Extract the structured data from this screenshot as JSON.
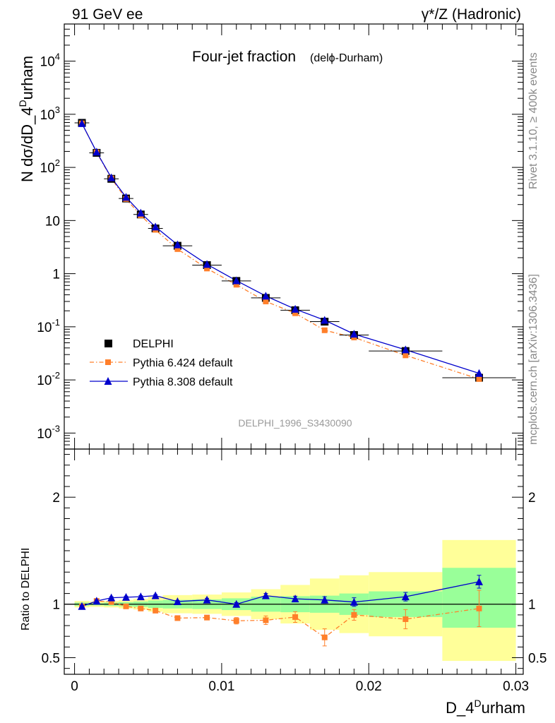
{
  "header": {
    "left": "91 GeV ee",
    "right": "γ*/Z (Hadronic)"
  },
  "side": {
    "rivet": "Rivet 3.1.10, ≥ 400k events",
    "mcplots": "mcplots.cern.ch [arXiv:1306.3436]"
  },
  "colors": {
    "data": "#000000",
    "pythia6": "#ff7f2a",
    "pythia8": "#0000cc",
    "band_inner": "#99ff99",
    "band_outer": "#ffff99",
    "watermark": "#9a9a9a"
  },
  "chart_data": {
    "type": "line",
    "title": "Four-jet fraction",
    "title_sub": "(delϕ-Durham)",
    "xlabel": "D_4",
    "xlabel_sup": "D",
    "xlabel_tail": "urham",
    "ylabel": "N dσ/dD_4",
    "ylabel_sup": "D",
    "ylabel_tail": "urham",
    "ratio_ylabel": "Ratio to DELPHI",
    "analysis_id": "DELPHI_1996_S3430090",
    "xlim": [
      -0.0007,
      0.0305
    ],
    "ylim_log": [
      0.0005,
      50000
    ],
    "ratio_ylim": [
      0.345,
      2.45
    ],
    "x_ticks": [
      "0",
      "0.01",
      "0.02",
      "0.03"
    ],
    "y_ticks": [
      "10^-3",
      "10^-2",
      "10^-1",
      "1",
      "10",
      "10^2",
      "10^3",
      "10^4"
    ],
    "ratio_ticks": [
      "0.5",
      "1",
      "2"
    ],
    "legend": [
      "DELPHI",
      "Pythia 6.424 default",
      "Pythia 8.308 default"
    ],
    "x": [
      0.0005,
      0.0015,
      0.0025,
      0.0035,
      0.0045,
      0.0055,
      0.007,
      0.009,
      0.011,
      0.013,
      0.015,
      0.017,
      0.019,
      0.0225,
      0.0275
    ],
    "bin_edges": [
      0,
      0.001,
      0.002,
      0.003,
      0.004,
      0.005,
      0.006,
      0.008,
      0.01,
      0.012,
      0.014,
      0.016,
      0.018,
      0.02,
      0.025,
      0.03
    ],
    "series": [
      {
        "name": "DELPHI",
        "values": [
          690,
          188,
          61,
          26,
          13,
          7.1,
          3.35,
          1.45,
          0.73,
          0.35,
          0.205,
          0.125,
          0.07,
          0.035,
          0.011
        ]
      },
      {
        "name": "Pythia 6.424 default",
        "values": [
          675,
          192,
          62,
          25.5,
          12.5,
          6.7,
          2.9,
          1.25,
          0.62,
          0.3,
          0.18,
          0.086,
          0.063,
          0.029,
          0.0104
        ],
        "ratio": [
          0.98,
          1.03,
          1.02,
          0.98,
          0.96,
          0.94,
          0.87,
          0.875,
          0.845,
          0.85,
          0.88,
          0.69,
          0.9,
          0.86,
          0.96
        ],
        "ratio_err": [
          0.01,
          0.01,
          0.01,
          0.01,
          0.01,
          0.01,
          0.015,
          0.02,
          0.03,
          0.04,
          0.05,
          0.08,
          0.05,
          0.09,
          0.17
        ]
      },
      {
        "name": "Pythia 8.308 default",
        "values": [
          672,
          195,
          64,
          27.5,
          13.9,
          7.6,
          3.5,
          1.5,
          0.74,
          0.38,
          0.215,
          0.133,
          0.073,
          0.037,
          0.0133
        ],
        "ratio": [
          0.98,
          1.03,
          1.06,
          1.065,
          1.07,
          1.08,
          1.025,
          1.04,
          1.0,
          1.08,
          1.05,
          1.04,
          1.02,
          1.07,
          1.21
        ],
        "ratio_err": [
          0.01,
          0.01,
          0.01,
          0.01,
          0.01,
          0.01,
          0.01,
          0.015,
          0.015,
          0.02,
          0.025,
          0.03,
          0.04,
          0.04,
          0.06
        ]
      }
    ],
    "band_inner": {
      "lo": [
        0.985,
        0.99,
        0.985,
        0.98,
        0.975,
        0.965,
        0.96,
        0.955,
        0.945,
        0.93,
        0.925,
        0.92,
        0.9,
        0.88,
        0.78
      ],
      "hi": [
        1.015,
        1.01,
        1.015,
        1.02,
        1.025,
        1.035,
        1.04,
        1.045,
        1.055,
        1.07,
        1.075,
        1.08,
        1.1,
        1.12,
        1.34
      ]
    },
    "band_outer": {
      "lo": [
        0.97,
        0.975,
        0.97,
        0.96,
        0.95,
        0.93,
        0.915,
        0.91,
        0.89,
        0.86,
        0.82,
        0.76,
        0.73,
        0.7,
        0.47
      ],
      "hi": [
        1.03,
        1.025,
        1.03,
        1.04,
        1.05,
        1.07,
        1.085,
        1.09,
        1.11,
        1.14,
        1.18,
        1.24,
        1.27,
        1.3,
        1.6
      ]
    }
  }
}
